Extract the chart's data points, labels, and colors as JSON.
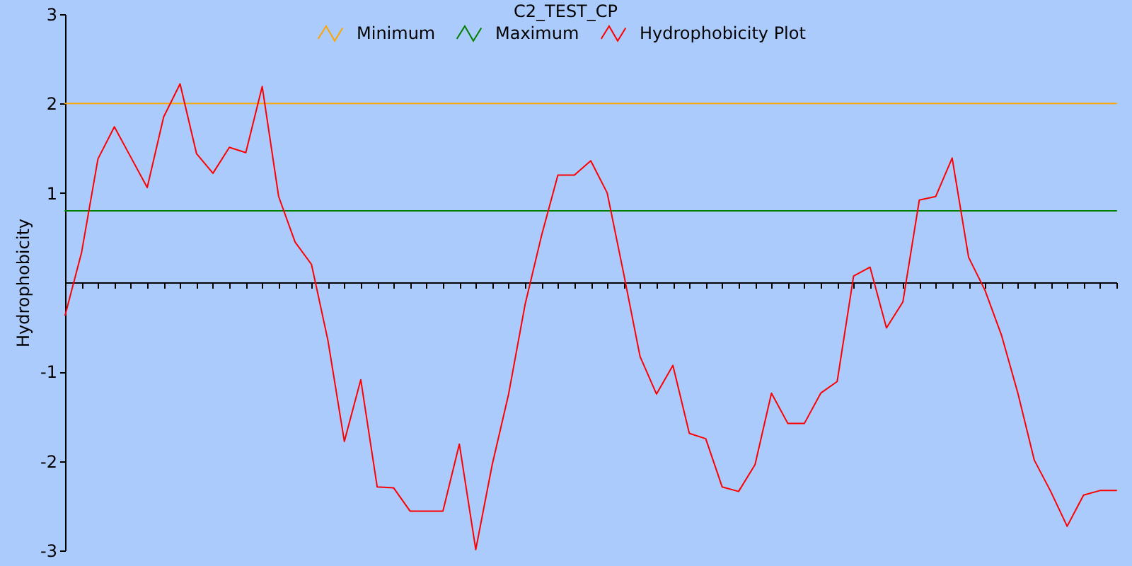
{
  "chart_data": {
    "type": "line",
    "title": "C2_TEST_CP",
    "ylabel": "Hydrophobicity",
    "categories": [
      null,
      null,
      null,
      null,
      null,
      null,
      null,
      null,
      null,
      null,
      null,
      null,
      null,
      null,
      null,
      null,
      null,
      null,
      null,
      null,
      null,
      null,
      null,
      null,
      null,
      null,
      null,
      null,
      null,
      null,
      null,
      null,
      null,
      null,
      null,
      null,
      null,
      null,
      null,
      null,
      null,
      null,
      null,
      null,
      null,
      null,
      null,
      null,
      null,
      null,
      null,
      null,
      null,
      null,
      null,
      null,
      null,
      null,
      null,
      null,
      null,
      null,
      null,
      null,
      null
    ],
    "series": [
      {
        "name": "Minimum",
        "color": "#ffa500",
        "values": [
          2,
          2,
          2,
          2,
          2,
          2,
          2,
          2,
          2,
          2,
          2,
          2,
          2,
          2,
          2,
          2,
          2,
          2,
          2,
          2,
          2,
          2,
          2,
          2,
          2,
          2,
          2,
          2,
          2,
          2,
          2,
          2,
          2,
          2,
          2,
          2,
          2,
          2,
          2,
          2,
          2,
          2,
          2,
          2,
          2,
          2,
          2,
          2,
          2,
          2,
          2,
          2,
          2,
          2,
          2,
          2,
          2,
          2,
          2,
          2,
          2,
          2,
          2,
          2,
          2
        ]
      },
      {
        "name": "Maximum",
        "color": "#008000",
        "values": [
          0.8,
          0.8,
          0.8,
          0.8,
          0.8,
          0.8,
          0.8,
          0.8,
          0.8,
          0.8,
          0.8,
          0.8,
          0.8,
          0.8,
          0.8,
          0.8,
          0.8,
          0.8,
          0.8,
          0.8,
          0.8,
          0.8,
          0.8,
          0.8,
          0.8,
          0.8,
          0.8,
          0.8,
          0.8,
          0.8,
          0.8,
          0.8,
          0.8,
          0.8,
          0.8,
          0.8,
          0.8,
          0.8,
          0.8,
          0.8,
          0.8,
          0.8,
          0.8,
          0.8,
          0.8,
          0.8,
          0.8,
          0.8,
          0.8,
          0.8,
          0.8,
          0.8,
          0.8,
          0.8,
          0.8,
          0.8,
          0.8,
          0.8,
          0.8,
          0.8,
          0.8,
          0.8,
          0.8,
          0.8,
          0.8
        ]
      },
      {
        "name": "Hydrophobicity Plot",
        "color": "#ff0000",
        "values": [
          -0.37,
          0.33,
          1.38,
          1.74,
          1.4,
          1.06,
          1.85,
          2.22,
          1.44,
          1.22,
          1.51,
          1.45,
          2.19,
          0.96,
          0.45,
          0.2,
          -0.65,
          -1.78,
          -1.09,
          -2.29,
          -2.3,
          -2.56,
          -2.56,
          -2.56,
          -1.81,
          -2.99,
          -2.04,
          -1.25,
          -0.25,
          0.52,
          1.2,
          1.2,
          1.36,
          1.0,
          0.1,
          -0.83,
          -1.25,
          -0.93,
          -1.69,
          -1.75,
          -2.29,
          -2.34,
          -2.04,
          -1.24,
          -1.58,
          -1.58,
          -1.24,
          -1.11,
          0.07,
          0.17,
          -0.51,
          -0.22,
          0.92,
          0.96,
          1.39,
          0.28,
          -0.09,
          -0.59,
          -1.24,
          -1.99,
          -2.34,
          -2.73,
          -2.38,
          -2.33,
          -2.33
        ]
      }
    ],
    "ylim": [
      -3,
      3
    ],
    "yticks": [
      -3,
      -2,
      -1,
      1,
      2,
      3
    ],
    "tick_labels": "y",
    "grid": false,
    "legend": "top"
  }
}
